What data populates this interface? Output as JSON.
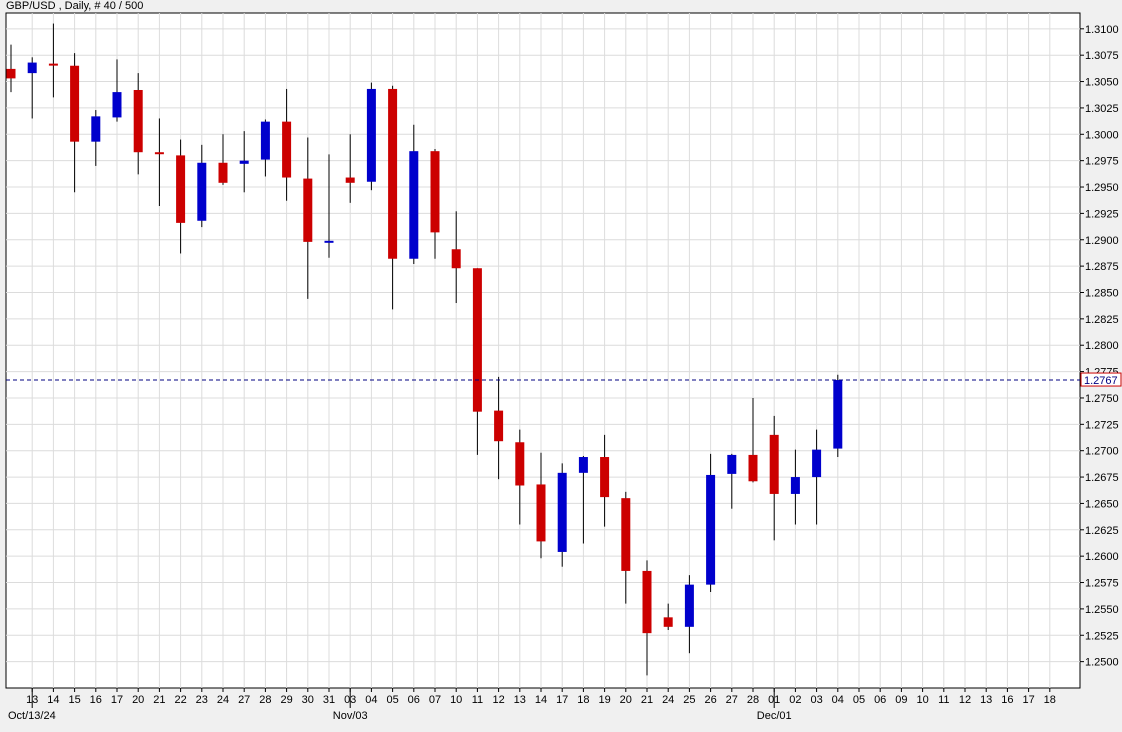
{
  "header": {
    "title": "GBP/USD , Daily, # 40 / 500"
  },
  "colors": {
    "up": "#0000cc",
    "down": "#cc0000",
    "grid": "#dcdcdc",
    "background": "#ffffff",
    "price_line": "#000080"
  },
  "chart_data": {
    "type": "candlestick",
    "symbol": "GBP/USD",
    "timeframe": "Daily",
    "ylim": [
      1.2475,
      1.3115
    ],
    "yticks": [
      "1.2500",
      "1.2525",
      "1.2550",
      "1.2575",
      "1.2600",
      "1.2625",
      "1.2650",
      "1.2675",
      "1.2700",
      "1.2725",
      "1.2750",
      "1.2775",
      "1.2800",
      "1.2825",
      "1.2850",
      "1.2875",
      "1.2900",
      "1.2925",
      "1.2950",
      "1.2975",
      "1.3000",
      "1.3025",
      "1.3050",
      "1.3075",
      "1.3100"
    ],
    "grid": true,
    "current_price": "1.2767",
    "xticks": [
      "13",
      "14",
      "15",
      "16",
      "17",
      "20",
      "21",
      "22",
      "23",
      "24",
      "27",
      "28",
      "29",
      "30",
      "31",
      "03",
      "04",
      "05",
      "06",
      "07",
      "10",
      "11",
      "12",
      "13",
      "14",
      "17",
      "18",
      "19",
      "20",
      "21",
      "24",
      "25",
      "26",
      "27",
      "28",
      "01",
      "02",
      "03",
      "04",
      "05",
      "06",
      "09",
      "10",
      "11",
      "12",
      "13",
      "16",
      "17",
      "18"
    ],
    "month_labels": [
      {
        "index": 0,
        "label": "Oct/13/24"
      },
      {
        "index": 15,
        "label": "Nov/03"
      },
      {
        "index": 35,
        "label": "Dec/01"
      }
    ],
    "candles": [
      {
        "date": "13",
        "open": 1.3062,
        "high": 1.3085,
        "low": 1.304,
        "close": 1.3053
      },
      {
        "date": "14",
        "open": 1.3058,
        "high": 1.3073,
        "low": 1.3015,
        "close": 1.3068
      },
      {
        "date": "15",
        "open": 1.3067,
        "high": 1.3105,
        "low": 1.3035,
        "close": 1.3066
      },
      {
        "date": "16",
        "open": 1.3065,
        "high": 1.3077,
        "low": 1.2945,
        "close": 1.2993
      },
      {
        "date": "17",
        "open": 1.2993,
        "high": 1.3023,
        "low": 1.297,
        "close": 1.3017
      },
      {
        "date": "18",
        "open": 1.3016,
        "high": 1.3071,
        "low": 1.3012,
        "close": 1.304
      },
      {
        "date": "20",
        "open": 1.3042,
        "high": 1.3058,
        "low": 1.2962,
        "close": 1.2983
      },
      {
        "date": "21",
        "open": 1.2983,
        "high": 1.3015,
        "low": 1.2932,
        "close": 1.2982
      },
      {
        "date": "22",
        "open": 1.298,
        "high": 1.2995,
        "low": 1.2887,
        "close": 1.2916
      },
      {
        "date": "23",
        "open": 1.2918,
        "high": 1.299,
        "low": 1.2912,
        "close": 1.2973
      },
      {
        "date": "24",
        "open": 1.2973,
        "high": 1.3,
        "low": 1.2952,
        "close": 1.2954
      },
      {
        "date": "25",
        "open": 1.2972,
        "high": 1.3003,
        "low": 1.2945,
        "close": 1.2975
      },
      {
        "date": "28",
        "open": 1.2976,
        "high": 1.3014,
        "low": 1.296,
        "close": 1.3012
      },
      {
        "date": "29",
        "open": 1.3012,
        "high": 1.3043,
        "low": 1.2937,
        "close": 1.2959
      },
      {
        "date": "30",
        "open": 1.2958,
        "high": 1.2997,
        "low": 1.2844,
        "close": 1.2898
      },
      {
        "date": "31",
        "open": 1.2898,
        "high": 1.2981,
        "low": 1.2883,
        "close": 1.2899
      },
      {
        "date": "01",
        "open": 1.2959,
        "high": 1.3,
        "low": 1.2935,
        "close": 1.2954
      },
      {
        "date": "04",
        "open": 1.2955,
        "high": 1.3049,
        "low": 1.2947,
        "close": 1.3043
      },
      {
        "date": "05",
        "open": 1.3043,
        "high": 1.3046,
        "low": 1.2834,
        "close": 1.2882
      },
      {
        "date": "06",
        "open": 1.2882,
        "high": 1.3009,
        "low": 1.2877,
        "close": 1.2984
      },
      {
        "date": "07",
        "open": 1.2984,
        "high": 1.2986,
        "low": 1.2882,
        "close": 1.2907
      },
      {
        "date": "08",
        "open": 1.2891,
        "high": 1.2927,
        "low": 1.284,
        "close": 1.2873
      },
      {
        "date": "11",
        "open": 1.2873,
        "high": 1.2873,
        "low": 1.2696,
        "close": 1.2737
      },
      {
        "date": "12",
        "open": 1.2738,
        "high": 1.277,
        "low": 1.2673,
        "close": 1.2709
      },
      {
        "date": "13",
        "open": 1.2708,
        "high": 1.272,
        "low": 1.263,
        "close": 1.2667
      },
      {
        "date": "14",
        "open": 1.2668,
        "high": 1.2698,
        "low": 1.2598,
        "close": 1.2614
      },
      {
        "date": "15",
        "open": 1.2604,
        "high": 1.2688,
        "low": 1.259,
        "close": 1.2679
      },
      {
        "date": "18",
        "open": 1.2679,
        "high": 1.2695,
        "low": 1.2612,
        "close": 1.2694
      },
      {
        "date": "19",
        "open": 1.2694,
        "high": 1.2715,
        "low": 1.2628,
        "close": 1.2656
      },
      {
        "date": "20",
        "open": 1.2655,
        "high": 1.2661,
        "low": 1.2555,
        "close": 1.2586
      },
      {
        "date": "21",
        "open": 1.2586,
        "high": 1.2596,
        "low": 1.2487,
        "close": 1.2527
      },
      {
        "date": "22",
        "open": 1.2542,
        "high": 1.2555,
        "low": 1.253,
        "close": 1.2533
      },
      {
        "date": "25",
        "open": 1.2533,
        "high": 1.2582,
        "low": 1.2508,
        "close": 1.2573
      },
      {
        "date": "26",
        "open": 1.2573,
        "high": 1.2697,
        "low": 1.2566,
        "close": 1.2677
      },
      {
        "date": "27",
        "open": 1.2678,
        "high": 1.2697,
        "low": 1.2645,
        "close": 1.2696
      },
      {
        "date": "28",
        "open": 1.2696,
        "high": 1.275,
        "low": 1.267,
        "close": 1.2671
      },
      {
        "date": "29",
        "open": 1.2715,
        "high": 1.2733,
        "low": 1.2615,
        "close": 1.2659
      },
      {
        "date": "02",
        "open": 1.2659,
        "high": 1.2701,
        "low": 1.263,
        "close": 1.2675
      },
      {
        "date": "03",
        "open": 1.2675,
        "high": 1.272,
        "low": 1.263,
        "close": 1.2701
      },
      {
        "date": "04",
        "open": 1.2702,
        "high": 1.2772,
        "low": 1.2694,
        "close": 1.2767
      }
    ]
  }
}
